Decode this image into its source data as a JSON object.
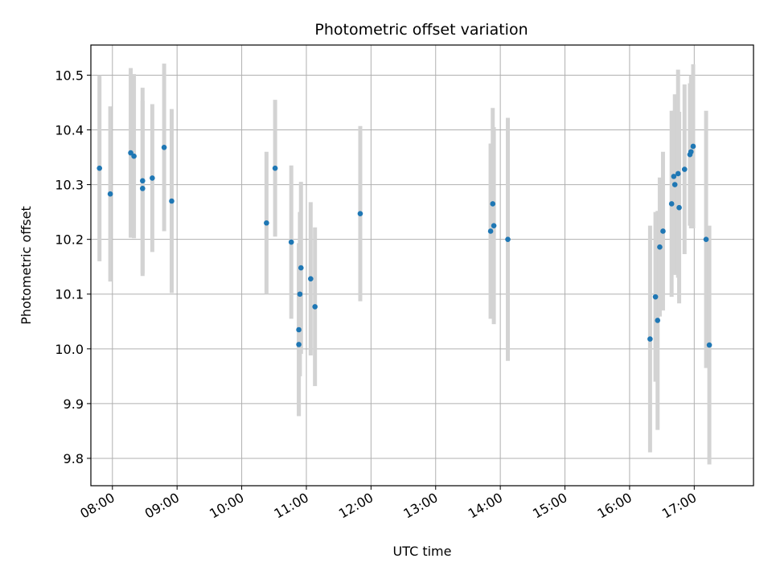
{
  "chart_data": {
    "type": "scatter",
    "title": "Photometric offset variation",
    "xlabel": "UTC time",
    "ylabel": "Photometric offset",
    "xlim": [
      "07:40",
      "17:55"
    ],
    "ylim": [
      9.75,
      10.555
    ],
    "grid": true,
    "x_ticks": [
      "08:00",
      "09:00",
      "10:00",
      "11:00",
      "12:00",
      "13:00",
      "14:00",
      "15:00",
      "16:00",
      "17:00"
    ],
    "y_ticks": [
      "9.8",
      "9.9",
      "10.0",
      "10.1",
      "10.2",
      "10.3",
      "10.4",
      "10.5"
    ],
    "colors": {
      "point": "#1f77b4",
      "errorbar": "#d3d3d3",
      "grid": "#b0b0b0"
    },
    "points": [
      {
        "time": "07:48",
        "y": 10.33,
        "err": 0.17
      },
      {
        "time": "07:58",
        "y": 10.283,
        "err": 0.16
      },
      {
        "time": "08:17",
        "y": 10.358,
        "err": 0.155
      },
      {
        "time": "08:20",
        "y": 10.352,
        "err": 0.15
      },
      {
        "time": "08:28",
        "y": 10.293,
        "err": 0.16
      },
      {
        "time": "08:28",
        "y": 10.307,
        "err": 0.17
      },
      {
        "time": "08:37",
        "y": 10.312,
        "err": 0.135
      },
      {
        "time": "08:48",
        "y": 10.368,
        "err": 0.153
      },
      {
        "time": "08:55",
        "y": 10.27,
        "err": 0.168
      },
      {
        "time": "10:23",
        "y": 10.23,
        "err": 0.13
      },
      {
        "time": "10:31",
        "y": 10.33,
        "err": 0.125
      },
      {
        "time": "10:46",
        "y": 10.195,
        "err": 0.14
      },
      {
        "time": "10:53",
        "y": 10.008,
        "err": 0.13
      },
      {
        "time": "10:53",
        "y": 10.035,
        "err": 0.158
      },
      {
        "time": "10:54",
        "y": 10.1,
        "err": 0.15
      },
      {
        "time": "10:55",
        "y": 10.148,
        "err": 0.157
      },
      {
        "time": "11:04",
        "y": 10.128,
        "err": 0.14
      },
      {
        "time": "11:08",
        "y": 10.077,
        "err": 0.145
      },
      {
        "time": "11:50",
        "y": 10.247,
        "err": 0.16
      },
      {
        "time": "13:51",
        "y": 10.215,
        "err": 0.16
      },
      {
        "time": "13:53",
        "y": 10.265,
        "err": 0.175
      },
      {
        "time": "13:54",
        "y": 10.225,
        "err": 0.18
      },
      {
        "time": "14:07",
        "y": 10.2,
        "err": 0.222
      },
      {
        "time": "16:19",
        "y": 10.018,
        "err": 0.207
      },
      {
        "time": "16:24",
        "y": 10.095,
        "err": 0.155
      },
      {
        "time": "16:26",
        "y": 10.052,
        "err": 0.2
      },
      {
        "time": "16:28",
        "y": 10.186,
        "err": 0.127
      },
      {
        "time": "16:31",
        "y": 10.215,
        "err": 0.145
      },
      {
        "time": "16:39",
        "y": 10.265,
        "err": 0.17
      },
      {
        "time": "16:41",
        "y": 10.315,
        "err": 0.12
      },
      {
        "time": "16:42",
        "y": 10.3,
        "err": 0.165
      },
      {
        "time": "16:45",
        "y": 10.32,
        "err": 0.19
      },
      {
        "time": "16:46",
        "y": 10.258,
        "err": 0.175
      },
      {
        "time": "16:51",
        "y": 10.328,
        "err": 0.155
      },
      {
        "time": "16:56",
        "y": 10.355,
        "err": 0.13
      },
      {
        "time": "16:57",
        "y": 10.36,
        "err": 0.14
      },
      {
        "time": "16:59",
        "y": 10.37,
        "err": 0.15
      },
      {
        "time": "17:11",
        "y": 10.2,
        "err": 0.235
      },
      {
        "time": "17:14",
        "y": 10.007,
        "err": 0.218
      }
    ]
  }
}
